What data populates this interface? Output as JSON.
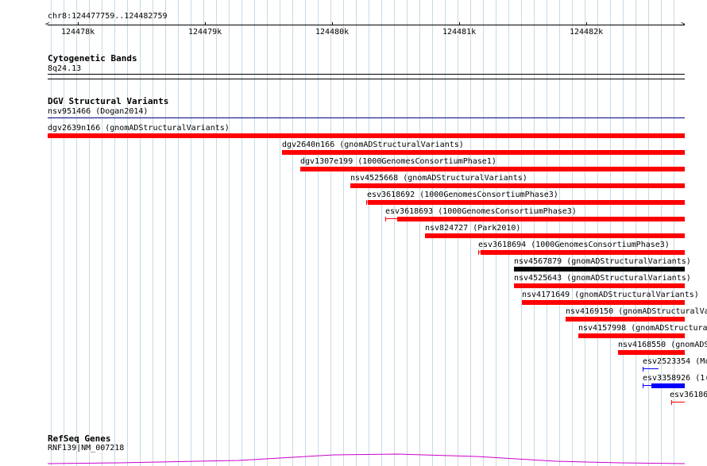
{
  "ruler": {
    "region": "chr8:124477759..124482759",
    "ticks": [
      "124478k",
      "124479k",
      "124480k",
      "124481k",
      "124482k"
    ]
  },
  "cytoband": {
    "title": "Cytogenetic Bands",
    "band": "8q24.13"
  },
  "dgv": {
    "title": "DGV Structural Variants",
    "features": [
      {
        "label": "nsv951466 (Dogan2014)",
        "color": "#000080",
        "kind": "line"
      },
      {
        "label": "dgv2639n166 (gnomADStructuralVariants)",
        "color": "#ff0000",
        "kind": "bar"
      },
      {
        "label": "dgv2640n166 (gnomADStructuralVariants)",
        "color": "#ff0000",
        "kind": "bar"
      },
      {
        "label": "dgv1307e199 (1000GenomesConsortiumPhase1)",
        "color": "#ff0000",
        "kind": "bar"
      },
      {
        "label": "nsv4525668 (gnomADStructuralVariants)",
        "color": "#ff0000",
        "kind": "bar"
      },
      {
        "label": "esv3618692 (1000GenomesConsortiumPhase3)",
        "color": "#ff0000",
        "kind": "bar"
      },
      {
        "label": "esv3618693 (1000GenomesConsortiumPhase3)",
        "color": "#ff0000",
        "kind": "bar"
      },
      {
        "label": "nsv824727 (Park2010)",
        "color": "#ff0000",
        "kind": "bar"
      },
      {
        "label": "esv3618694 (1000GenomesConsortiumPhase3)",
        "color": "#ff0000",
        "kind": "bar"
      },
      {
        "label": "nsv4567879 (gnomADStructuralVariants)",
        "color": "#000000",
        "kind": "bar"
      },
      {
        "label": "nsv4525643 (gnomADStructuralVariants)",
        "color": "#ff0000",
        "kind": "bar"
      },
      {
        "label": "nsv4171649 (gnomADStructuralVariants)",
        "color": "#ff0000",
        "kind": "bar"
      },
      {
        "label": "nsv4169150 (gnomADStructuralVa",
        "color": "#ff0000",
        "kind": "bar"
      },
      {
        "label": "nsv4157998 (gnomADStructura",
        "color": "#ff0000",
        "kind": "bar"
      },
      {
        "label": "nsv4168550 (gnomADS",
        "color": "#ff0000",
        "kind": "bar"
      },
      {
        "label": "esv2523354 (Mc",
        "color": "#0000ff",
        "kind": "marker"
      },
      {
        "label": "esv3358926 (1(",
        "color": "#0000ff",
        "kind": "bar"
      },
      {
        "label": "esv36186",
        "color": "#ff0000",
        "kind": "marker"
      }
    ]
  },
  "refseq": {
    "title": "RefSeq Genes",
    "gene": "RNF139|NM_007218",
    "color": "#cc00cc"
  }
}
